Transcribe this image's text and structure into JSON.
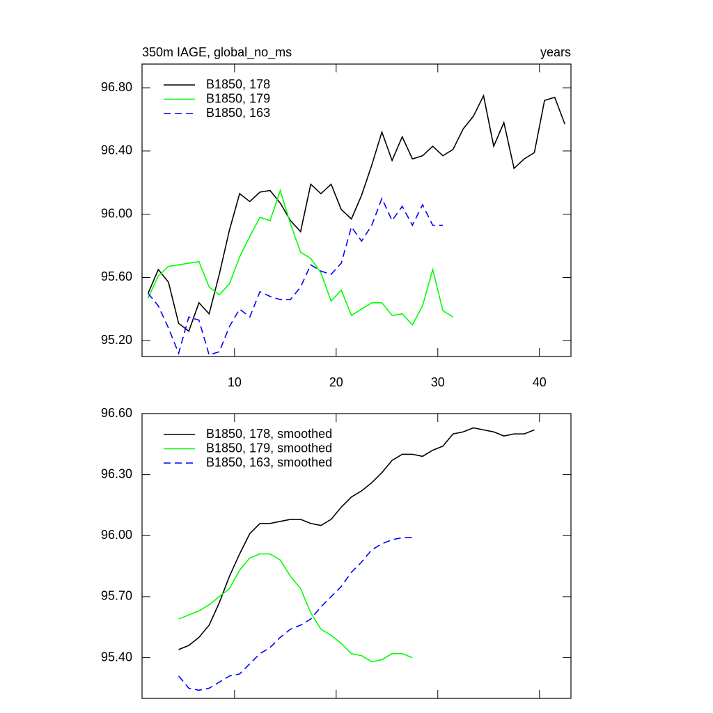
{
  "chart_data": [
    {
      "type": "line",
      "title": "350m IAGE, global_no_ms",
      "subtitle": "years",
      "x": [
        1.5,
        2.5,
        3.5,
        4.5,
        5.5,
        6.5,
        7.5,
        8.5,
        9.5,
        10.5,
        11.5,
        12.5,
        13.5,
        14.5,
        15.5,
        16.5,
        17.5,
        18.5,
        19.5,
        20.5,
        21.5,
        22.5,
        23.5,
        24.5,
        25.5,
        26.5,
        27.5,
        28.5,
        29.5,
        30.5,
        31.5,
        32.5,
        33.5,
        34.5,
        35.5,
        36.5,
        37.5,
        38.5,
        39.5,
        40.5,
        41.5,
        42.5
      ],
      "series": [
        {
          "name": "B1850, 178",
          "color": "#000000",
          "dash": false,
          "values": [
            95.5,
            95.65,
            95.57,
            95.31,
            95.26,
            95.44,
            95.37,
            95.62,
            95.9,
            96.13,
            96.08,
            96.14,
            96.15,
            96.07,
            95.96,
            95.89,
            96.19,
            96.13,
            96.19,
            96.03,
            95.97,
            96.12,
            96.31,
            96.52,
            96.34,
            96.49,
            96.35,
            96.37,
            96.43,
            96.37,
            96.41,
            96.54,
            96.62,
            96.75,
            96.43,
            96.58,
            96.29,
            96.35,
            96.39,
            96.72,
            96.74,
            96.57
          ]
        },
        {
          "name": "B1850, 179",
          "color": "#00ff00",
          "dash": false,
          "values": [
            95.47,
            95.61,
            95.67,
            95.68,
            95.69,
            95.7,
            95.54,
            95.49,
            95.56,
            95.73,
            95.86,
            95.98,
            95.96,
            96.15,
            95.94,
            95.76,
            95.72,
            95.63,
            95.45,
            95.52,
            95.36,
            95.4,
            95.44,
            95.44,
            95.36,
            95.37,
            95.3,
            95.42,
            95.65,
            95.39,
            95.35,
            null,
            null,
            null,
            null,
            null,
            null,
            null,
            null,
            null,
            null,
            null
          ]
        },
        {
          "name": "B1850, 163",
          "color": "#0000ff",
          "dash": true,
          "values": [
            95.5,
            95.42,
            95.28,
            95.12,
            95.35,
            95.33,
            95.11,
            95.13,
            95.29,
            95.4,
            95.35,
            95.51,
            95.48,
            95.46,
            95.46,
            95.54,
            95.68,
            95.64,
            95.62,
            95.69,
            95.92,
            95.83,
            95.93,
            96.1,
            95.96,
            96.05,
            95.93,
            96.06,
            95.93,
            95.93,
            null,
            null,
            null,
            null,
            null,
            null,
            null,
            null,
            null,
            null,
            null,
            null
          ]
        }
      ],
      "xlim": [
        0.9,
        43.1
      ],
      "xticks": [
        10,
        20,
        30,
        40
      ],
      "show_xtick_labels": true,
      "ylim": [
        95.1,
        96.95
      ],
      "yticks": [
        {
          "value": 95.2,
          "label": "95.20"
        },
        {
          "value": 95.6,
          "label": "95.60"
        },
        {
          "value": 96.0,
          "label": "96.00"
        },
        {
          "value": 96.4,
          "label": "96.40"
        },
        {
          "value": 96.8,
          "label": "96.80"
        }
      ],
      "legend": "upper left"
    },
    {
      "type": "line",
      "x": [
        4.5,
        5.5,
        6.5,
        7.5,
        8.5,
        9.5,
        10.5,
        11.5,
        12.5,
        13.5,
        14.5,
        15.5,
        16.5,
        17.5,
        18.5,
        19.5,
        20.5,
        21.5,
        22.5,
        23.5,
        24.5,
        25.5,
        26.5,
        27.5,
        28.5,
        29.5,
        30.5,
        31.5,
        32.5,
        33.5,
        34.5,
        35.5,
        36.5,
        37.5,
        38.5,
        39.5
      ],
      "series": [
        {
          "name": "B1850, 178, smoothed",
          "color": "#000000",
          "dash": false,
          "values": [
            95.44,
            95.46,
            95.5,
            95.56,
            95.67,
            95.8,
            95.91,
            96.01,
            96.06,
            96.06,
            96.07,
            96.08,
            96.08,
            96.06,
            96.05,
            96.08,
            96.14,
            96.19,
            96.22,
            96.26,
            96.31,
            96.37,
            96.4,
            96.4,
            96.39,
            96.42,
            96.44,
            96.5,
            96.51,
            96.53,
            96.52,
            96.51,
            96.49,
            96.5,
            96.5,
            96.52
          ]
        },
        {
          "name": "B1850, 179, smoothed",
          "color": "#00ff00",
          "dash": false,
          "values": [
            95.59,
            95.61,
            95.63,
            95.66,
            95.7,
            95.74,
            95.83,
            95.89,
            95.91,
            95.91,
            95.88,
            95.8,
            95.74,
            95.62,
            95.54,
            95.51,
            95.47,
            95.42,
            95.41,
            95.38,
            95.39,
            95.42,
            95.42,
            95.4,
            null,
            null,
            null,
            null,
            null,
            null,
            null,
            null,
            null,
            null,
            null,
            null
          ]
        },
        {
          "name": "B1850, 163, smoothed",
          "color": "#0000ff",
          "dash": true,
          "values": [
            95.31,
            95.25,
            95.24,
            95.25,
            95.28,
            95.31,
            95.32,
            95.37,
            95.42,
            95.45,
            95.5,
            95.54,
            95.56,
            95.59,
            95.65,
            95.7,
            95.75,
            95.82,
            95.87,
            95.93,
            95.96,
            95.98,
            95.99,
            95.99,
            null,
            null,
            null,
            null,
            null,
            null,
            null,
            null,
            null,
            null,
            null,
            null
          ]
        }
      ],
      "xlim": [
        0.9,
        43.1
      ],
      "xticks": [
        10,
        20,
        30,
        40
      ],
      "show_xtick_labels": false,
      "ylim": [
        95.2,
        96.6
      ],
      "yticks": [
        {
          "value": 95.4,
          "label": "95.40"
        },
        {
          "value": 95.7,
          "label": "95.70"
        },
        {
          "value": 96.0,
          "label": "96.00"
        },
        {
          "value": 96.3,
          "label": "96.30"
        },
        {
          "value": 96.6,
          "label": "96.60"
        }
      ],
      "legend": "upper left"
    }
  ]
}
